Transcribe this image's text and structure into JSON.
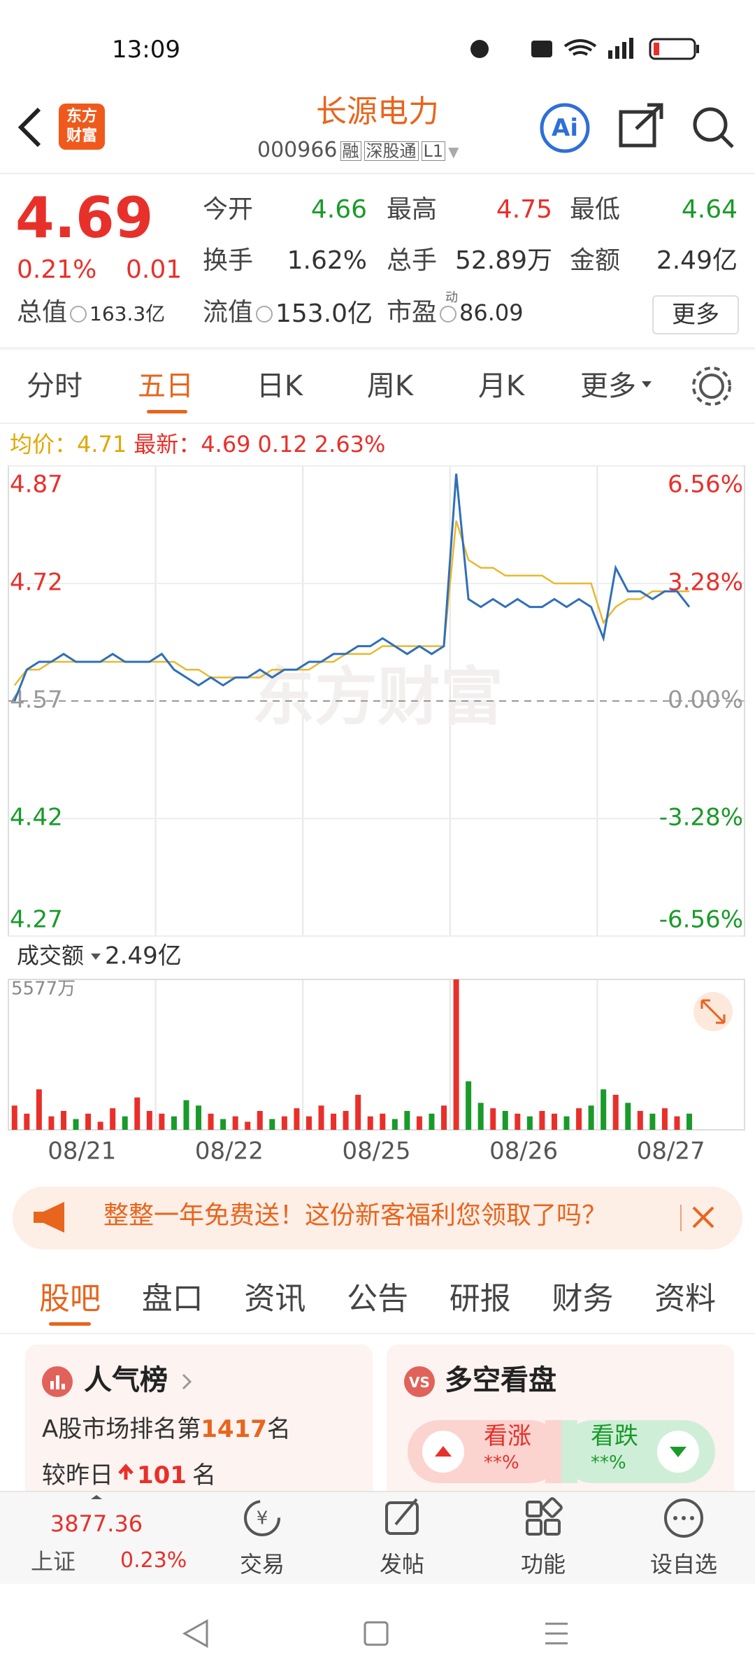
{
  "status_bar": {
    "time": "13:09"
  },
  "header": {
    "logo": [
      "东方",
      "财富"
    ],
    "title": "长源电力",
    "code": "000966",
    "tags": [
      "融",
      "深股通",
      "L1"
    ],
    "ai": "Ai"
  },
  "quote": {
    "price": "4.69",
    "change_pct": "0.21%",
    "change": "0.01",
    "fields": [
      {
        "label": "今开",
        "value": "4.66"
      },
      {
        "label": "最高",
        "value": "4.75"
      },
      {
        "label": "最低",
        "value": "4.64"
      },
      {
        "label": "换手",
        "value": "1.62%"
      },
      {
        "label": "总手",
        "value": "52.89万"
      },
      {
        "label": "金额",
        "value": "2.49亿"
      },
      {
        "label": "总值",
        "value": "163.3亿"
      },
      {
        "label": "流值",
        "value": "153.0亿"
      },
      {
        "label": "市盈",
        "sup": "动",
        "value": "86.09"
      }
    ],
    "more": "更多"
  },
  "chart_tabs": [
    "分时",
    "五日",
    "日K",
    "周K",
    "月K",
    "更多"
  ],
  "legend": {
    "avg": "4.71",
    "latest": "4.69",
    "change": "0.12",
    "change_pct": "2.63%"
  },
  "chart_data": [
    {
      "type": "line",
      "watermark": "东方财富",
      "ylim": [
        4.27,
        4.87
      ],
      "yticks": [
        4.87,
        4.72,
        4.57,
        4.42,
        4.27
      ],
      "y2lim": [
        -6.56,
        6.56
      ],
      "y2ticks": [
        {
          "value": 6.56,
          "label": "6.56%"
        },
        {
          "value": 3.28,
          "label": "3.28%"
        },
        {
          "value": 0,
          "label": "0.00%"
        },
        {
          "value": -3.28,
          "label": "-3.28%"
        },
        {
          "value": -6.56,
          "label": "-6.56%"
        }
      ],
      "series": [
        {
          "name": "最新：",
          "color": "#2f6fb8",
          "values": [
            4.57,
            4.61,
            4.62,
            4.62,
            4.63,
            4.62,
            4.62,
            4.62,
            4.63,
            4.62,
            4.62,
            4.62,
            4.63,
            4.61,
            4.6,
            4.59,
            4.6,
            4.59,
            4.6,
            4.6,
            4.61,
            4.6,
            4.61,
            4.61,
            4.62,
            4.62,
            4.63,
            4.63,
            4.64,
            4.64,
            4.65,
            4.64,
            4.63,
            4.64,
            4.63,
            4.64,
            4.86,
            4.7,
            4.69,
            4.7,
            4.69,
            4.7,
            4.69,
            4.69,
            4.7,
            4.69,
            4.7,
            4.69,
            4.65,
            4.74,
            4.71,
            4.71,
            4.7,
            4.71,
            4.71,
            4.69,
            null,
            null,
            null,
            null
          ]
        },
        {
          "name": "均价：",
          "color": "#e8b830",
          "values": [
            4.59,
            4.61,
            4.61,
            4.62,
            4.62,
            4.62,
            4.62,
            4.62,
            4.62,
            4.62,
            4.62,
            4.62,
            4.62,
            4.62,
            4.61,
            4.61,
            4.6,
            4.6,
            4.6,
            4.6,
            4.6,
            4.61,
            4.61,
            4.61,
            4.61,
            4.62,
            4.62,
            4.63,
            4.63,
            4.63,
            4.64,
            4.64,
            4.64,
            4.64,
            4.64,
            4.64,
            4.8,
            4.75,
            4.74,
            4.74,
            4.73,
            4.73,
            4.73,
            4.73,
            4.72,
            4.72,
            4.72,
            4.72,
            4.67,
            4.69,
            4.7,
            4.7,
            4.71,
            4.71,
            4.71,
            4.71,
            null,
            null,
            null,
            null
          ]
        }
      ]
    },
    {
      "type": "bar",
      "label": "成交额",
      "total": "2.49亿",
      "ylim": [
        0,
        5577
      ],
      "yticks": [
        {
          "value": 5577,
          "label": "5577万"
        }
      ],
      "up_color": "#e8302a",
      "down_color": "#1a9a2a",
      "values": [
        900,
        600,
        1500,
        500,
        700,
        400,
        600,
        300,
        800,
        500,
        1200,
        700,
        600,
        500,
        1100,
        900,
        600,
        400,
        500,
        300,
        700,
        400,
        500,
        800,
        500,
        900,
        600,
        700,
        1300,
        500,
        600,
        400,
        700,
        500,
        600,
        900,
        5577,
        1800,
        1000,
        800,
        700,
        600,
        500,
        700,
        600,
        500,
        800,
        900,
        1500,
        1300,
        1000,
        700,
        600,
        800,
        500,
        600,
        null,
        null,
        null,
        null
      ],
      "day_labels": [
        "08/21",
        "08/22",
        "08/25",
        "08/26",
        "08/27"
      ]
    }
  ],
  "banner": "整整一年免费送！这份新客福利您领取了吗？",
  "section_tabs": [
    "股吧",
    "盘口",
    "资讯",
    "公告",
    "研报",
    "财务",
    "资料"
  ],
  "popularity": {
    "title": "人气榜",
    "rank_prefix": "A股市场排名第",
    "rank": "1417",
    "rank_suffix": "名",
    "change_prefix": "较昨日",
    "change": "101",
    "change_suffix": "名"
  },
  "sentiment": {
    "icon": "VS",
    "title": "多空看盘",
    "bull": "看涨",
    "bull_pct": "**%",
    "bear": "看跌",
    "bear_pct": "**%"
  },
  "bottom_bar": {
    "index": "3877.36",
    "index_name": "上证",
    "index_pct": "0.23%",
    "items": [
      "交易",
      "发帖",
      "功能",
      "设自选"
    ]
  }
}
